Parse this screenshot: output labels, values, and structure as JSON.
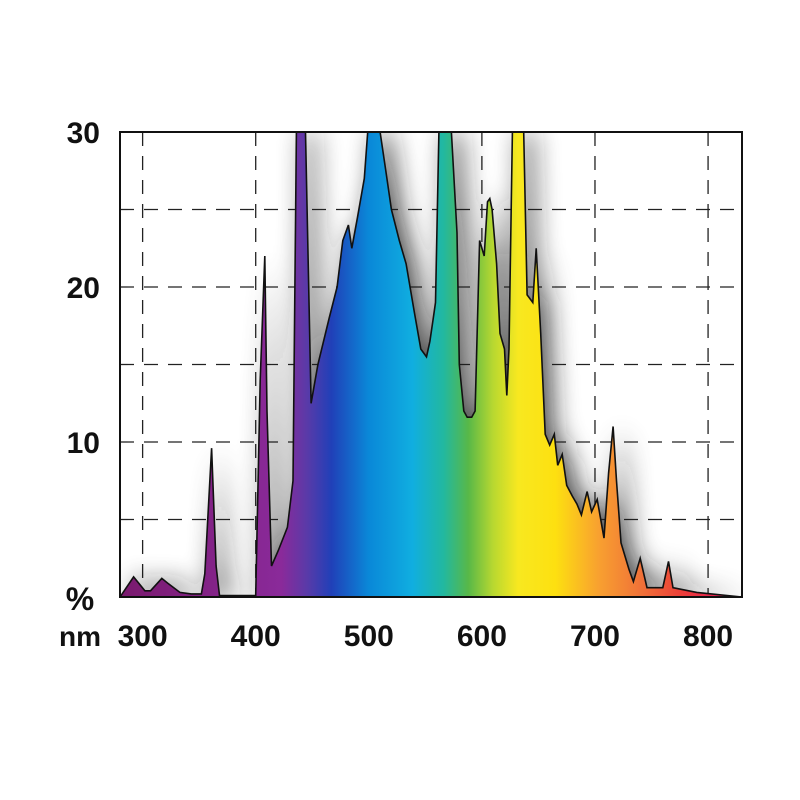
{
  "chart_data": {
    "type": "area",
    "title": "",
    "ylabel": "%",
    "xlabel": "nm",
    "xlim": [
      280,
      830
    ],
    "ylim": [
      0,
      30
    ],
    "grid": true,
    "x_ticks": [
      {
        "value": 300,
        "label": "300"
      },
      {
        "value": 400,
        "label": "400"
      },
      {
        "value": 500,
        "label": "500"
      },
      {
        "value": 600,
        "label": "600"
      },
      {
        "value": 700,
        "label": "700"
      },
      {
        "value": 800,
        "label": "800"
      }
    ],
    "y_ticks": [
      {
        "value": 10,
        "label": "10"
      },
      {
        "value": 20,
        "label": "20"
      },
      {
        "value": 30,
        "label": "30"
      }
    ],
    "gridlines_x": [
      300,
      400,
      500,
      600,
      700,
      800
    ],
    "gridlines_y": [
      5,
      10,
      15,
      20,
      25
    ],
    "series": [
      {
        "points": [
          [
            280,
            0
          ],
          [
            292,
            1.3
          ],
          [
            302,
            0.4
          ],
          [
            307,
            0.4
          ],
          [
            317,
            1.2
          ],
          [
            322,
            0.9
          ],
          [
            333,
            0.3
          ],
          [
            343,
            0.2
          ],
          [
            352,
            0.2
          ],
          [
            355,
            1.5
          ],
          [
            361,
            9.6
          ],
          [
            365,
            2.0
          ],
          [
            368,
            0.1
          ],
          [
            395,
            0.1
          ],
          [
            400,
            0.1
          ],
          [
            404,
            14.0
          ],
          [
            408,
            22.0
          ],
          [
            410,
            12.0
          ],
          [
            414,
            2.0
          ],
          [
            420,
            3.0
          ],
          [
            428,
            4.5
          ],
          [
            433,
            7.5
          ],
          [
            436,
            30
          ],
          [
            444,
            30
          ],
          [
            449,
            12.5
          ],
          [
            455,
            15.0
          ],
          [
            465,
            18.0
          ],
          [
            472,
            20.0
          ],
          [
            477,
            23.0
          ],
          [
            482,
            24.0
          ],
          [
            485,
            22.5
          ],
          [
            490,
            24.5
          ],
          [
            496,
            27.0
          ],
          [
            499,
            30
          ],
          [
            510,
            30
          ],
          [
            515,
            27.5
          ],
          [
            520,
            25.0
          ],
          [
            527,
            23.0
          ],
          [
            533,
            21.5
          ],
          [
            540,
            18.5
          ],
          [
            546,
            16.0
          ],
          [
            551,
            15.5
          ],
          [
            554,
            16.5
          ],
          [
            557,
            18.0
          ],
          [
            559,
            19.0
          ],
          [
            562,
            30
          ],
          [
            573,
            30
          ],
          [
            578,
            23.5
          ],
          [
            580,
            15.0
          ],
          [
            584,
            12.0
          ],
          [
            587,
            11.6
          ],
          [
            591,
            11.6
          ],
          [
            594,
            12.0
          ],
          [
            598,
            23.0
          ],
          [
            602,
            22.0
          ],
          [
            605,
            25.5
          ],
          [
            607,
            25.7
          ],
          [
            609,
            25.0
          ],
          [
            613,
            21.5
          ],
          [
            616,
            17.0
          ],
          [
            620,
            16.0
          ],
          [
            622,
            13.0
          ],
          [
            624,
            16.0
          ],
          [
            627,
            30
          ],
          [
            637,
            30
          ],
          [
            640,
            19.5
          ],
          [
            645,
            19.0
          ],
          [
            648,
            22.5
          ],
          [
            652,
            17.0
          ],
          [
            656,
            10.5
          ],
          [
            660,
            9.8
          ],
          [
            664,
            10.5
          ],
          [
            667,
            8.5
          ],
          [
            671,
            9.2
          ],
          [
            675,
            7.2
          ],
          [
            680,
            6.5
          ],
          [
            684,
            6.0
          ],
          [
            688,
            5.3
          ],
          [
            693,
            6.8
          ],
          [
            697,
            5.5
          ],
          [
            702,
            6.3
          ],
          [
            708,
            3.8
          ],
          [
            712,
            8.0
          ],
          [
            716,
            11.0
          ],
          [
            719,
            7.5
          ],
          [
            723,
            3.5
          ],
          [
            730,
            1.8
          ],
          [
            734,
            1.0
          ],
          [
            740,
            2.5
          ],
          [
            746,
            0.6
          ],
          [
            760,
            0.6
          ],
          [
            765,
            2.3
          ],
          [
            769,
            0.6
          ],
          [
            790,
            0.3
          ],
          [
            830,
            0
          ]
        ]
      }
    ],
    "spectrum_colors": [
      {
        "offset": 0.0,
        "color": "#7a1a6e"
      },
      {
        "offset": 0.26,
        "color": "#8a2a9a"
      },
      {
        "offset": 0.3,
        "color": "#5a3aa8"
      },
      {
        "offset": 0.34,
        "color": "#2040b8"
      },
      {
        "offset": 0.4,
        "color": "#0a88d8"
      },
      {
        "offset": 0.47,
        "color": "#10aee0"
      },
      {
        "offset": 0.52,
        "color": "#22b8a0"
      },
      {
        "offset": 0.56,
        "color": "#58b848"
      },
      {
        "offset": 0.6,
        "color": "#b8d830"
      },
      {
        "offset": 0.64,
        "color": "#f8e820"
      },
      {
        "offset": 0.7,
        "color": "#fde010"
      },
      {
        "offset": 0.77,
        "color": "#f8a030"
      },
      {
        "offset": 0.84,
        "color": "#f07038"
      },
      {
        "offset": 0.9,
        "color": "#ec4038"
      },
      {
        "offset": 0.96,
        "color": "#e82050"
      },
      {
        "offset": 1.0,
        "color": "#e01848"
      }
    ]
  }
}
